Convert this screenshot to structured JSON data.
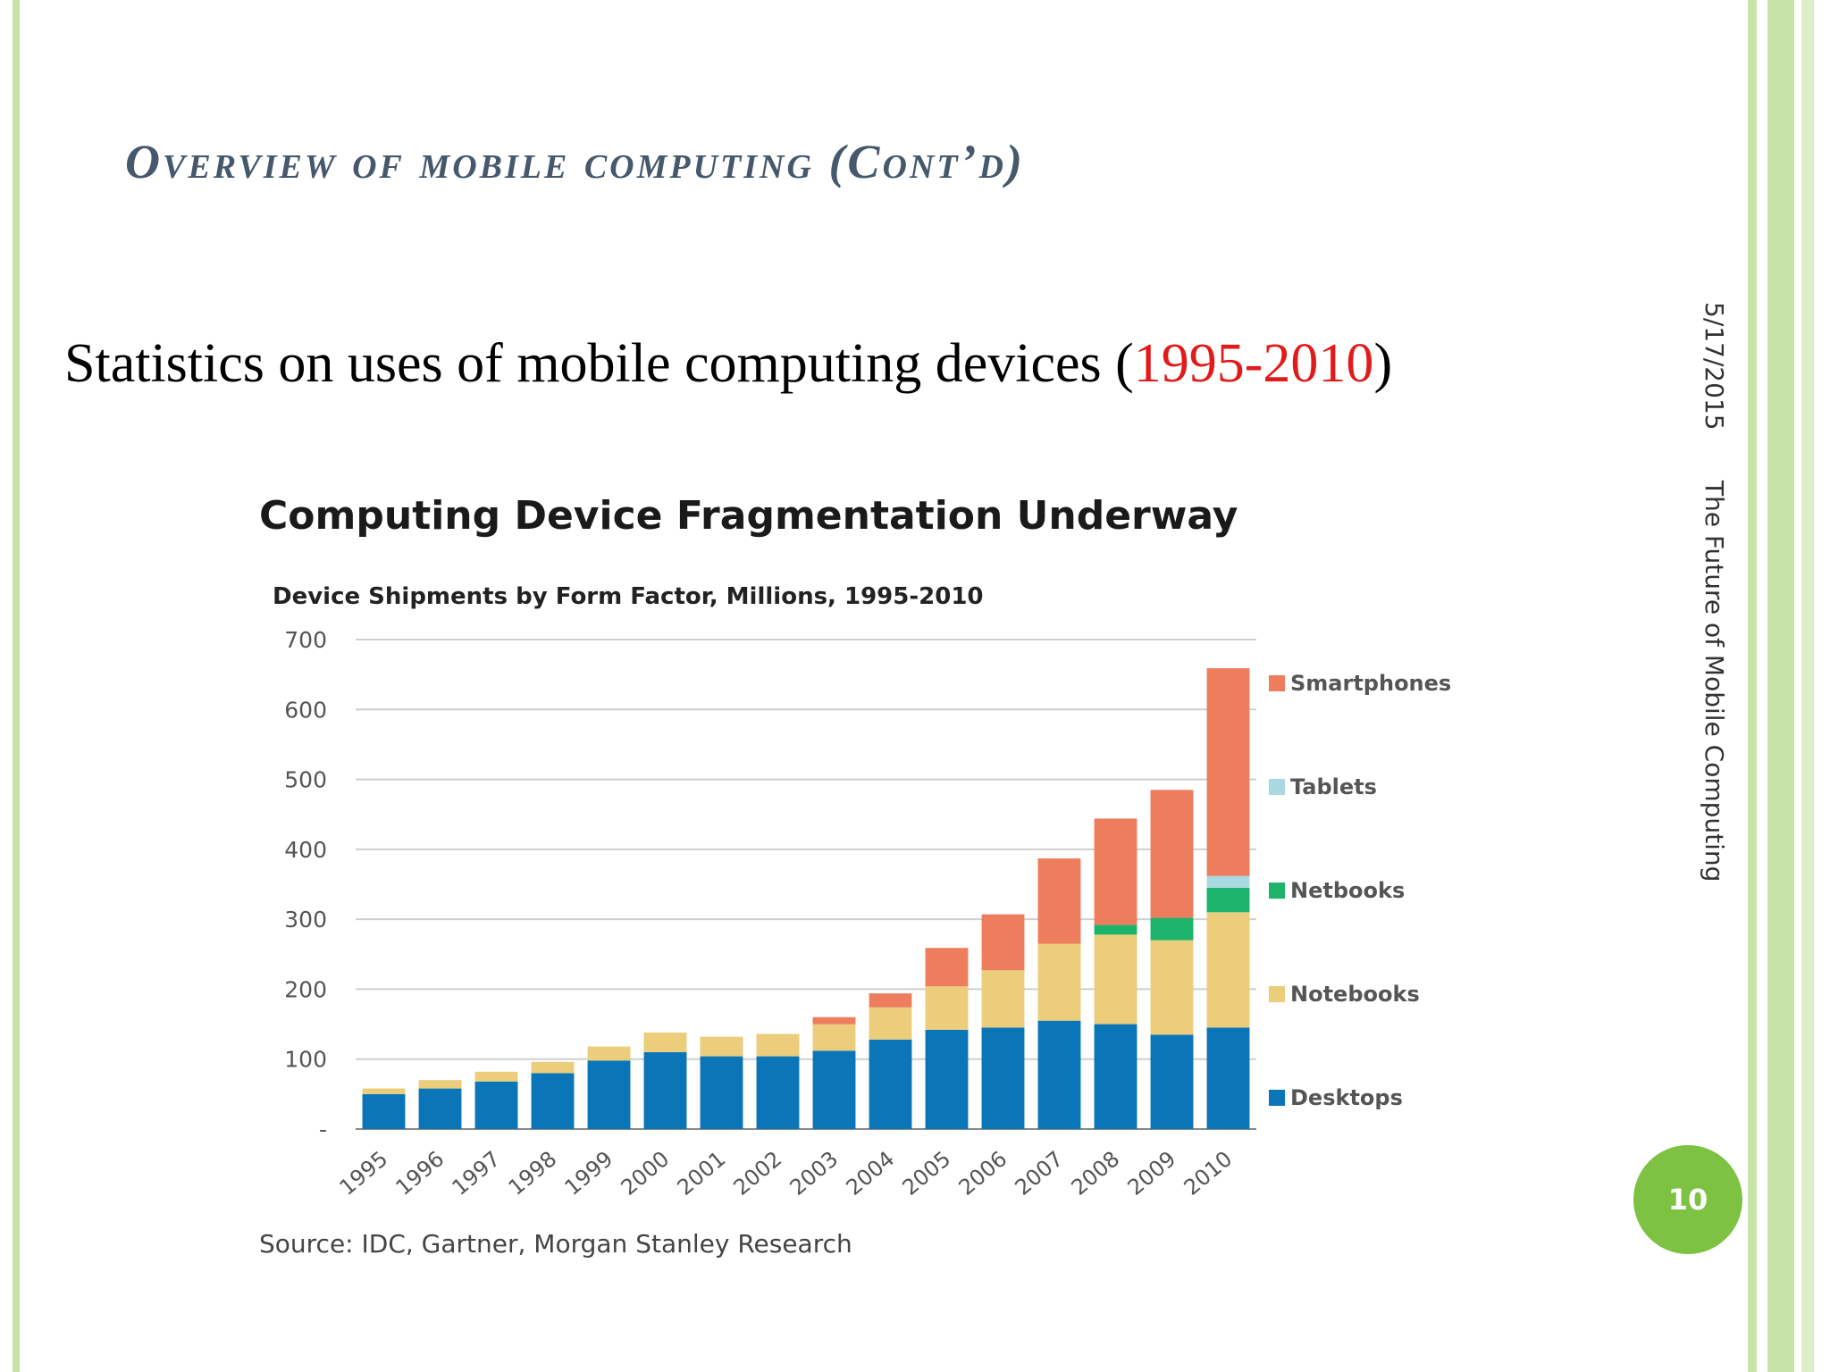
{
  "slide": {
    "title": "Overview of mobile computing (Cont’d)",
    "subtitle_prefix": "Statistics on uses of mobile computing devices (",
    "subtitle_years": "1995-2010",
    "subtitle_suffix": ")",
    "date": "5/17/2015",
    "footer": "The Future of Mobile Computing",
    "page_number": "10",
    "colors": {
      "title": "#46586b",
      "accent_green": "#7dc242",
      "highlight_red": "#e11b1b"
    }
  },
  "chart_data": {
    "type": "bar",
    "stacked": true,
    "title": "Computing Device Fragmentation Underway",
    "subtitle": "Device Shipments by Form Factor, Millions, 1995-2010",
    "source": "Source: IDC, Gartner, Morgan Stanley Research",
    "categories": [
      "1995",
      "1996",
      "1997",
      "1998",
      "1999",
      "2000",
      "2001",
      "2002",
      "2003",
      "2004",
      "2005",
      "2006",
      "2007",
      "2008",
      "2009",
      "2010"
    ],
    "ylim": [
      0,
      700
    ],
    "yticks": [
      {
        "value": 0,
        "label": "-"
      },
      {
        "value": 100,
        "label": "100"
      },
      {
        "value": 200,
        "label": "200"
      },
      {
        "value": 300,
        "label": "300"
      },
      {
        "value": 400,
        "label": "400"
      },
      {
        "value": 500,
        "label": "500"
      },
      {
        "value": 600,
        "label": "600"
      },
      {
        "value": 700,
        "label": "700"
      }
    ],
    "grid": true,
    "legend_position": "right",
    "series": [
      {
        "name": "Desktops",
        "color": "#0a76b7",
        "values": [
          50,
          58,
          68,
          80,
          98,
          110,
          104,
          104,
          112,
          128,
          142,
          145,
          155,
          150,
          135,
          145
        ]
      },
      {
        "name": "Notebooks",
        "color": "#eccd7b",
        "values": [
          8,
          12,
          14,
          16,
          20,
          28,
          28,
          32,
          38,
          46,
          62,
          82,
          110,
          128,
          135,
          165
        ]
      },
      {
        "name": "Netbooks",
        "color": "#1db36a",
        "values": [
          0,
          0,
          0,
          0,
          0,
          0,
          0,
          0,
          0,
          0,
          0,
          0,
          0,
          14,
          32,
          35
        ]
      },
      {
        "name": "Tablets",
        "color": "#a8d8e0",
        "values": [
          0,
          0,
          0,
          0,
          0,
          0,
          0,
          0,
          0,
          0,
          0,
          0,
          0,
          0,
          0,
          17
        ]
      },
      {
        "name": "Smartphones",
        "color": "#ee7d5d",
        "values": [
          0,
          0,
          0,
          0,
          0,
          0,
          0,
          0,
          10,
          20,
          55,
          80,
          122,
          152,
          183,
          297
        ]
      }
    ]
  }
}
